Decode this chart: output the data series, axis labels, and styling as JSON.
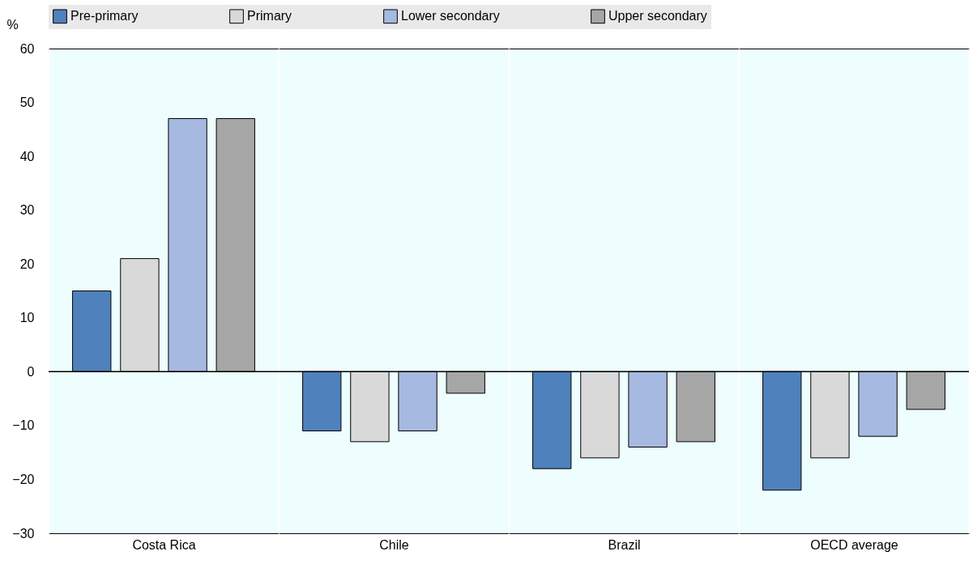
{
  "chart_data": {
    "type": "bar",
    "ylabel": "%",
    "categories": [
      "Costa Rica",
      "Chile",
      "Brazil",
      "OECD average"
    ],
    "series": [
      {
        "name": "Pre-primary",
        "color": "#4f81bd",
        "values": [
          15,
          -11,
          -18,
          -22
        ]
      },
      {
        "name": "Primary",
        "color": "#d9d9d9",
        "values": [
          21,
          -13,
          -16,
          -16
        ]
      },
      {
        "name": "Lower secondary",
        "color": "#a6b9e0",
        "values": [
          47,
          -11,
          -14,
          -12
        ]
      },
      {
        "name": "Upper secondary",
        "color": "#a6a6a6",
        "values": [
          47,
          -4,
          -13,
          -7
        ]
      }
    ],
    "ylim": [
      -30,
      60
    ],
    "yticks": [
      -30,
      -20,
      -10,
      0,
      10,
      20,
      30,
      40,
      50,
      60
    ],
    "grid": "x",
    "legend": "top",
    "ref_lines": [
      {
        "axis": "y",
        "value": 0
      }
    ]
  }
}
